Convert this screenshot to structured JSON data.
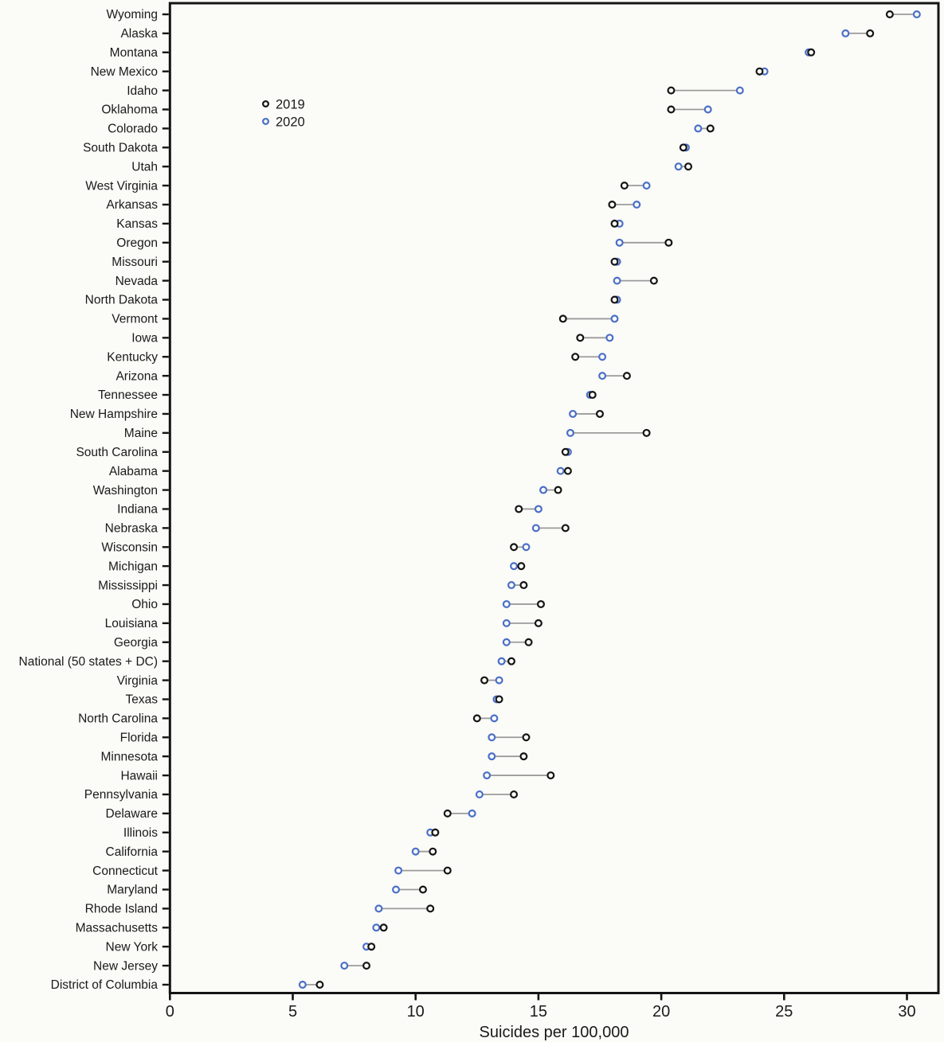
{
  "figure": {
    "background": "#fbfbf7",
    "legend": [
      {
        "label": "2019",
        "color": "#141414"
      },
      {
        "label": "2020",
        "color": "#4a6fc8"
      }
    ]
  },
  "colors": {
    "year2019": "#141414",
    "year2020": "#4a6fc8",
    "connector": "#9b9b9b",
    "axis": "#141414",
    "text": "#1a1a1a",
    "background": "#fbfbf7"
  },
  "chart_data": {
    "type": "scatter",
    "subtype": "dumbbell-dot-plot",
    "title": "",
    "xlabel": "Suicides per 100,000",
    "ylabel": "",
    "xlim": [
      0,
      31.3
    ],
    "x_ticks": [
      0,
      5,
      10,
      15,
      20,
      25,
      30
    ],
    "grid": false,
    "legend_position": "upper-left-inside",
    "sort_order": "descending by 2020 rate",
    "marker_style": "open circles connected by gray line",
    "categories": [
      "Wyoming",
      "Alaska",
      "Montana",
      "New Mexico",
      "Idaho",
      "Oklahoma",
      "Colorado",
      "South Dakota",
      "Utah",
      "West Virginia",
      "Arkansas",
      "Kansas",
      "Oregon",
      "Missouri",
      "Nevada",
      "North Dakota",
      "Vermont",
      "Iowa",
      "Kentucky",
      "Arizona",
      "Tennessee",
      "New Hampshire",
      "Maine",
      "South Carolina",
      "Alabama",
      "Washington",
      "Indiana",
      "Nebraska",
      "Wisconsin",
      "Michigan",
      "Mississippi",
      "Ohio",
      "Louisiana",
      "Georgia",
      "National (50 states + DC)",
      "Virginia",
      "Texas",
      "North Carolina",
      "Florida",
      "Minnesota",
      "Hawaii",
      "Pennsylvania",
      "Delaware",
      "Illinois",
      "California",
      "Connecticut",
      "Maryland",
      "Rhode Island",
      "Massachusetts",
      "New York",
      "New Jersey",
      "District of Columbia"
    ],
    "series": [
      {
        "name": "2019",
        "marker": "open-circle",
        "color": "#141414",
        "values": [
          29.3,
          28.5,
          26.1,
          24.0,
          20.4,
          20.4,
          22.0,
          20.9,
          21.1,
          18.5,
          18.0,
          18.1,
          20.3,
          18.1,
          19.7,
          18.1,
          16.0,
          16.7,
          16.5,
          18.6,
          17.2,
          17.5,
          19.4,
          16.1,
          16.2,
          15.8,
          14.2,
          16.1,
          14.0,
          14.3,
          14.4,
          15.1,
          15.0,
          14.6,
          13.9,
          12.8,
          13.4,
          12.5,
          14.5,
          14.4,
          15.5,
          14.0,
          11.3,
          10.8,
          10.7,
          11.3,
          10.3,
          10.6,
          8.7,
          8.2,
          8.0,
          6.1
        ]
      },
      {
        "name": "2020",
        "marker": "open-circle",
        "color": "#4a6fc8",
        "values": [
          30.4,
          27.5,
          26.0,
          24.2,
          23.2,
          21.9,
          21.5,
          21.0,
          20.7,
          19.4,
          19.0,
          18.3,
          18.3,
          18.2,
          18.2,
          18.2,
          18.1,
          17.9,
          17.6,
          17.6,
          17.1,
          16.4,
          16.3,
          16.2,
          15.9,
          15.2,
          15.0,
          14.9,
          14.5,
          14.0,
          13.9,
          13.7,
          13.7,
          13.7,
          13.5,
          13.4,
          13.3,
          13.2,
          13.1,
          13.1,
          12.9,
          12.6,
          12.3,
          10.6,
          10.0,
          9.3,
          9.2,
          8.5,
          8.4,
          8.0,
          7.1,
          5.4
        ]
      }
    ]
  }
}
